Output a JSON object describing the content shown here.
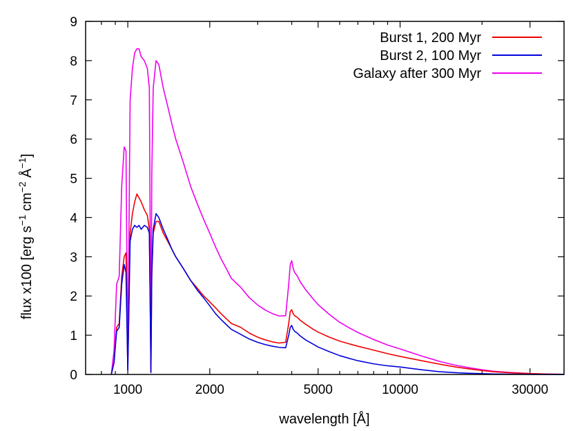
{
  "chart_data": {
    "type": "line",
    "title": "",
    "xlabel": "wavelength [Å]",
    "ylabel": {
      "parts": [
        {
          "text": "flux x100 [erg s",
          "sup": false
        },
        {
          "text": "−1",
          "sup": true
        },
        {
          "text": " cm",
          "sup": false
        },
        {
          "text": "−2",
          "sup": true
        },
        {
          "text": " Å",
          "sup": false
        },
        {
          "text": "−1",
          "sup": true
        },
        {
          "text": "]",
          "sup": false
        }
      ]
    },
    "xscale": "log",
    "xlim": [
      700,
      40000
    ],
    "ylim": [
      0,
      9
    ],
    "x_ticks": [
      {
        "value": 1000,
        "label": "1000"
      },
      {
        "value": 2000,
        "label": "2000"
      },
      {
        "value": 5000,
        "label": "5000"
      },
      {
        "value": 10000,
        "label": "10000"
      },
      {
        "value": 30000,
        "label": "30000"
      }
    ],
    "x_minor_ticks": [
      800,
      900,
      3000,
      4000,
      6000,
      7000,
      8000,
      9000,
      20000
    ],
    "y_ticks": [
      {
        "value": 0,
        "label": "0"
      },
      {
        "value": 1,
        "label": "1"
      },
      {
        "value": 2,
        "label": "2"
      },
      {
        "value": 3,
        "label": "3"
      },
      {
        "value": 4,
        "label": "4"
      },
      {
        "value": 5,
        "label": "5"
      },
      {
        "value": 6,
        "label": "6"
      },
      {
        "value": 7,
        "label": "7"
      },
      {
        "value": 8,
        "label": "8"
      },
      {
        "value": 9,
        "label": "9"
      }
    ],
    "grid": false,
    "legend_position": "top-right",
    "series": [
      {
        "name": "Burst 1, 200 Myr",
        "color": "#ee0000",
        "x": [
          870,
          890,
          910,
          930,
          950,
          970,
          985,
          1000,
          1020,
          1040,
          1060,
          1080,
          1100,
          1120,
          1150,
          1180,
          1200,
          1210,
          1216,
          1225,
          1240,
          1270,
          1300,
          1350,
          1400,
          1450,
          1500,
          1600,
          1700,
          1800,
          1900,
          2000,
          2100,
          2200,
          2300,
          2400,
          2600,
          2800,
          3000,
          3200,
          3400,
          3600,
          3800,
          3900,
          3950,
          4000,
          4050,
          4100,
          4200,
          4300,
          4500,
          4800,
          5000,
          5500,
          6000,
          6500,
          7000,
          8000,
          9000,
          10000,
          12000,
          14000,
          16000,
          18000,
          20000,
          22000,
          25000,
          30000,
          35000,
          40000
        ],
        "y": [
          0,
          0.3,
          1.2,
          1.3,
          2.5,
          3.0,
          3.1,
          0.1,
          3.6,
          4.1,
          4.4,
          4.6,
          4.5,
          4.4,
          4.2,
          4.05,
          3.7,
          1.5,
          0.05,
          2.5,
          3.6,
          3.9,
          3.9,
          3.6,
          3.4,
          3.2,
          3.0,
          2.7,
          2.4,
          2.2,
          2.0,
          1.85,
          1.7,
          1.55,
          1.42,
          1.3,
          1.2,
          1.05,
          0.95,
          0.88,
          0.83,
          0.8,
          0.82,
          1.3,
          1.6,
          1.65,
          1.55,
          1.5,
          1.45,
          1.38,
          1.28,
          1.15,
          1.08,
          0.95,
          0.85,
          0.78,
          0.72,
          0.62,
          0.53,
          0.46,
          0.35,
          0.26,
          0.19,
          0.14,
          0.1,
          0.07,
          0.045,
          0.02,
          0.008,
          0.003
        ]
      },
      {
        "name": "Burst 2, 100 Myr",
        "color": "#0000dd",
        "x": [
          870,
          890,
          910,
          930,
          950,
          970,
          985,
          1000,
          1020,
          1040,
          1060,
          1080,
          1100,
          1120,
          1150,
          1180,
          1200,
          1210,
          1216,
          1225,
          1240,
          1270,
          1300,
          1350,
          1400,
          1450,
          1500,
          1600,
          1700,
          1800,
          1900,
          2000,
          2100,
          2200,
          2300,
          2400,
          2600,
          2800,
          3000,
          3200,
          3400,
          3600,
          3800,
          3900,
          3950,
          4000,
          4050,
          4100,
          4200,
          4300,
          4500,
          4800,
          5000,
          5500,
          6000,
          6500,
          7000,
          8000,
          9000,
          10000,
          12000,
          14000,
          16000,
          18000,
          20000,
          22000,
          25000,
          30000,
          35000,
          40000
        ],
        "y": [
          0,
          0.3,
          1.1,
          1.2,
          2.3,
          2.8,
          2.6,
          0.1,
          3.4,
          3.7,
          3.8,
          3.75,
          3.8,
          3.7,
          3.8,
          3.75,
          3.6,
          1.5,
          0.05,
          2.6,
          3.7,
          4.1,
          4.0,
          3.7,
          3.45,
          3.2,
          3.0,
          2.7,
          2.4,
          2.15,
          1.95,
          1.75,
          1.55,
          1.4,
          1.27,
          1.15,
          1.02,
          0.9,
          0.82,
          0.76,
          0.72,
          0.69,
          0.68,
          1.0,
          1.2,
          1.25,
          1.15,
          1.1,
          1.05,
          0.98,
          0.88,
          0.77,
          0.7,
          0.58,
          0.48,
          0.41,
          0.35,
          0.27,
          0.22,
          0.19,
          0.12,
          0.07,
          0.045,
          0.03,
          0.02,
          0.013,
          0.008,
          0.004,
          0.002,
          0.001
        ]
      },
      {
        "name": "Galaxy after 300 Myr",
        "color": "#ee00ee",
        "x": [
          870,
          890,
          910,
          930,
          950,
          970,
          985,
          1000,
          1020,
          1040,
          1060,
          1080,
          1100,
          1120,
          1150,
          1180,
          1200,
          1210,
          1216,
          1225,
          1240,
          1270,
          1300,
          1350,
          1400,
          1450,
          1500,
          1600,
          1700,
          1800,
          1900,
          2000,
          2100,
          2200,
          2300,
          2400,
          2600,
          2800,
          3000,
          3200,
          3400,
          3600,
          3800,
          3900,
          3950,
          4000,
          4050,
          4100,
          4200,
          4300,
          4500,
          4800,
          5000,
          5500,
          6000,
          6500,
          7000,
          8000,
          9000,
          10000,
          12000,
          14000,
          16000,
          18000,
          20000,
          22000,
          25000,
          30000,
          35000,
          40000
        ],
        "y": [
          0,
          0.6,
          2.3,
          2.5,
          4.8,
          5.8,
          5.7,
          0.2,
          7.0,
          7.8,
          8.2,
          8.3,
          8.3,
          8.1,
          8.0,
          7.8,
          7.3,
          3.0,
          0.1,
          5.1,
          7.3,
          8.0,
          7.9,
          7.3,
          6.85,
          6.4,
          6.0,
          5.4,
          4.8,
          4.35,
          3.95,
          3.6,
          3.25,
          2.95,
          2.7,
          2.45,
          2.22,
          1.95,
          1.77,
          1.64,
          1.55,
          1.49,
          1.5,
          2.3,
          2.8,
          2.9,
          2.7,
          2.6,
          2.5,
          2.36,
          2.16,
          1.92,
          1.78,
          1.53,
          1.33,
          1.19,
          1.07,
          0.89,
          0.75,
          0.65,
          0.47,
          0.33,
          0.235,
          0.17,
          0.12,
          0.083,
          0.053,
          0.024,
          0.01,
          0.004
        ]
      }
    ]
  }
}
